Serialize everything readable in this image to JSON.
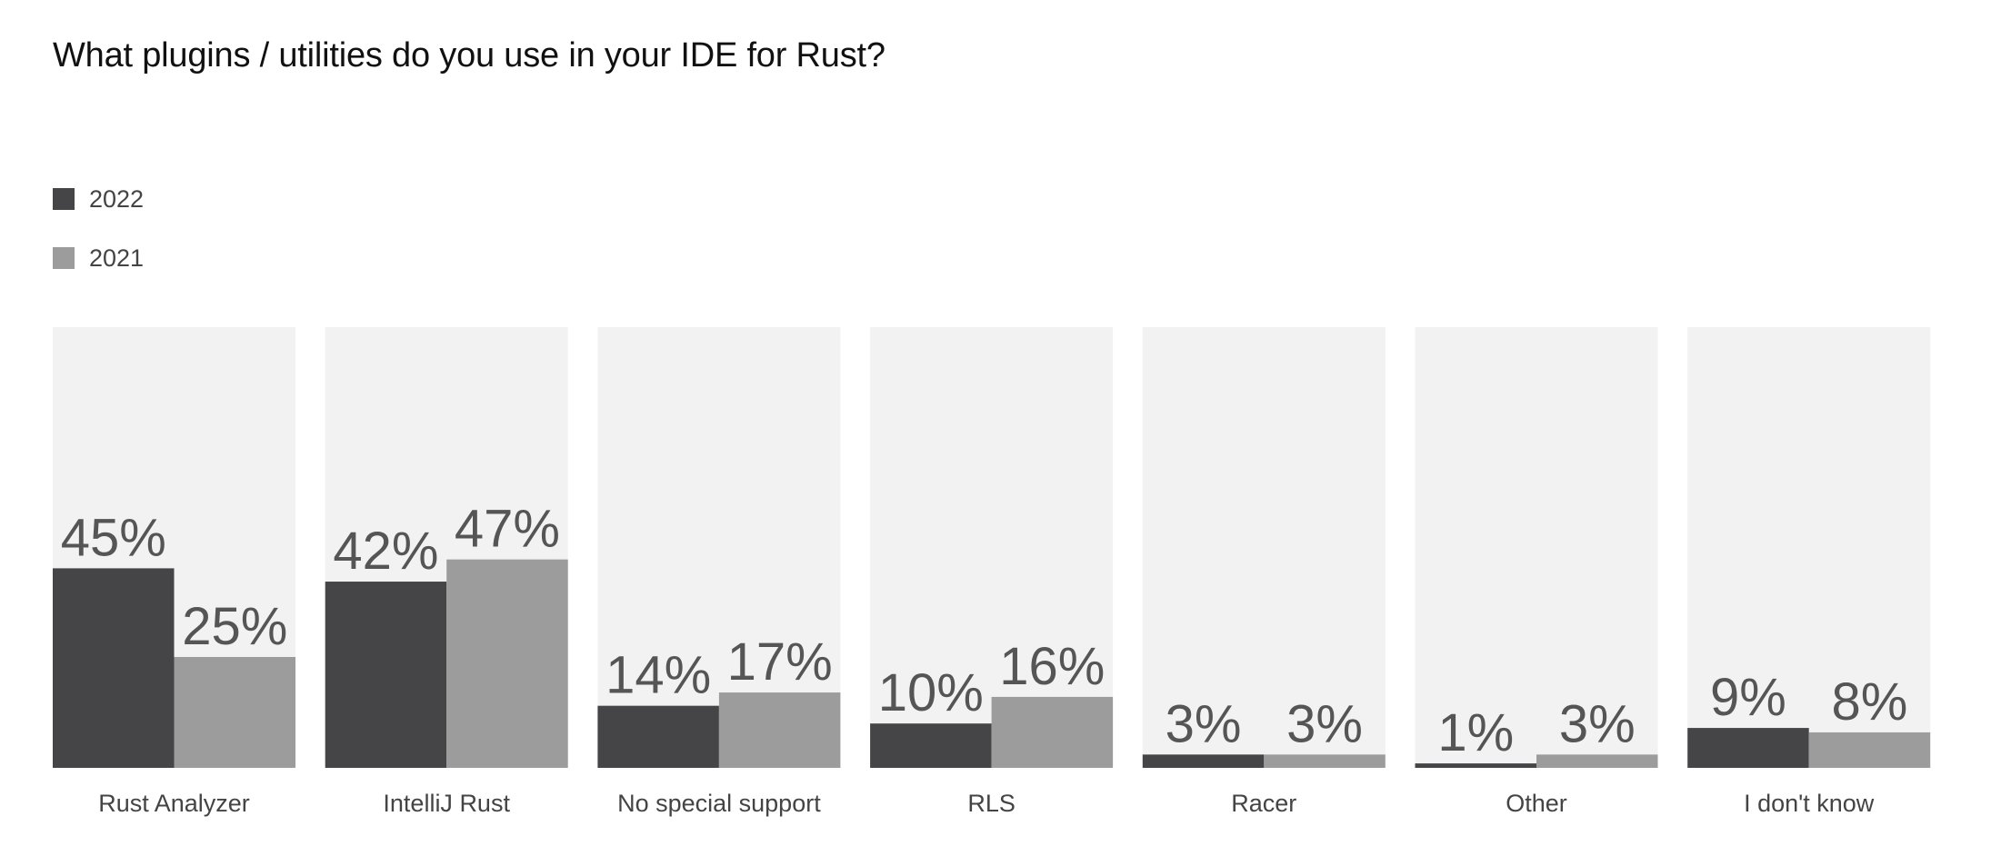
{
  "title": "What plugins / utilities do you use in your IDE for Rust?",
  "colors": {
    "series_2022": "#454547",
    "series_2021": "#9c9c9c",
    "panel": "#f2f2f2",
    "value_label": "#555555",
    "category_label": "#444444"
  },
  "legend": [
    {
      "label": "2022",
      "color": "#454547"
    },
    {
      "label": "2021",
      "color": "#9c9c9c"
    }
  ],
  "chart_data": {
    "type": "bar",
    "title": "What plugins / utilities do you use in your IDE for Rust?",
    "categories": [
      "Rust Analyzer",
      "IntelliJ Rust",
      "No special support",
      "RLS",
      "Racer",
      "Other",
      "I don't know"
    ],
    "series": [
      {
        "name": "2022",
        "values": [
          45,
          42,
          14,
          10,
          3,
          1,
          9
        ],
        "labels": [
          "45%",
          "42%",
          "14%",
          "10%",
          "3%",
          "1%",
          "9%"
        ]
      },
      {
        "name": "2021",
        "values": [
          25,
          47,
          17,
          16,
          3,
          3,
          8
        ],
        "labels": [
          "25%",
          "47%",
          "17%",
          "16%",
          "3%",
          "3%",
          "8%"
        ]
      }
    ],
    "ylim": [
      0,
      100
    ],
    "legend_position": "top-left",
    "grid": false
  }
}
